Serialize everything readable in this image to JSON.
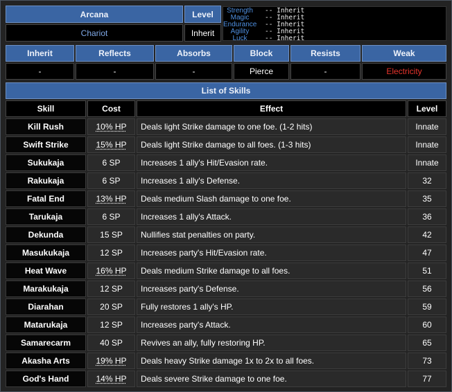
{
  "header": {
    "arcana_label": "Arcana",
    "arcana_value": "Chariot",
    "level_label": "Level",
    "level_value": "Inherit"
  },
  "stats": [
    {
      "label": "Strength",
      "value": "-- Inherit"
    },
    {
      "label": "Magic",
      "value": "-- Inherit"
    },
    {
      "label": "Endurance",
      "value": "-- Inherit"
    },
    {
      "label": "Agility",
      "value": "-- Inherit"
    },
    {
      "label": "Luck",
      "value": "-- Inherit"
    }
  ],
  "affinities": {
    "headers": [
      "Inherit",
      "Reflects",
      "Absorbs",
      "Block",
      "Resists",
      "Weak"
    ],
    "values": [
      "-",
      "-",
      "-",
      "Pierce",
      "-",
      "Electricity"
    ]
  },
  "colors": {
    "header_bg": "#3a65a3",
    "weak_text": "#e8342c",
    "arcana_value_text": "#7fa8e6",
    "stat_label": "#4e8fe0"
  },
  "skills_title": "List of Skills",
  "skills_columns": [
    "Skill",
    "Cost",
    "Effect",
    "Level"
  ],
  "skills": [
    {
      "name": "Kill Rush",
      "cost": "10% HP",
      "effect": "Deals light Strike damage to one foe. (1-2 hits)",
      "level": "Innate"
    },
    {
      "name": "Swift Strike",
      "cost": "15% HP",
      "effect": "Deals light Strike damage to all foes. (1-3 hits)",
      "level": "Innate"
    },
    {
      "name": "Sukukaja",
      "cost": "6 SP",
      "effect": "Increases 1 ally's Hit/Evasion rate.",
      "level": "Innate"
    },
    {
      "name": "Rakukaja",
      "cost": "6 SP",
      "effect": "Increases 1 ally's Defense.",
      "level": "32"
    },
    {
      "name": "Fatal End",
      "cost": "13% HP",
      "effect": "Deals medium Slash damage to one foe.",
      "level": "35"
    },
    {
      "name": "Tarukaja",
      "cost": "6 SP",
      "effect": "Increases 1 ally's Attack.",
      "level": "36"
    },
    {
      "name": "Dekunda",
      "cost": "15 SP",
      "effect": "Nullifies stat penalties on party.",
      "level": "42"
    },
    {
      "name": "Masukukaja",
      "cost": "12 SP",
      "effect": "Increases party's Hit/Evasion rate.",
      "level": "47"
    },
    {
      "name": "Heat Wave",
      "cost": "16% HP",
      "effect": "Deals medium Strike damage to all foes.",
      "level": "51"
    },
    {
      "name": "Marakukaja",
      "cost": "12 SP",
      "effect": "Increases party's Defense.",
      "level": "56"
    },
    {
      "name": "Diarahan",
      "cost": "20 SP",
      "effect": "Fully restores 1 ally's HP.",
      "level": "59"
    },
    {
      "name": "Matarukaja",
      "cost": "12 SP",
      "effect": "Increases party's Attack.",
      "level": "60"
    },
    {
      "name": "Samarecarm",
      "cost": "40 SP",
      "effect": "Revives an ally, fully restoring HP.",
      "level": "65"
    },
    {
      "name": "Akasha Arts",
      "cost": "19% HP",
      "effect": "Deals heavy Strike damage 1x to 2x to all foes.",
      "level": "73"
    },
    {
      "name": "God's Hand",
      "cost": "14% HP",
      "effect": "Deals severe Strike damage to one foe.",
      "level": "77"
    }
  ]
}
